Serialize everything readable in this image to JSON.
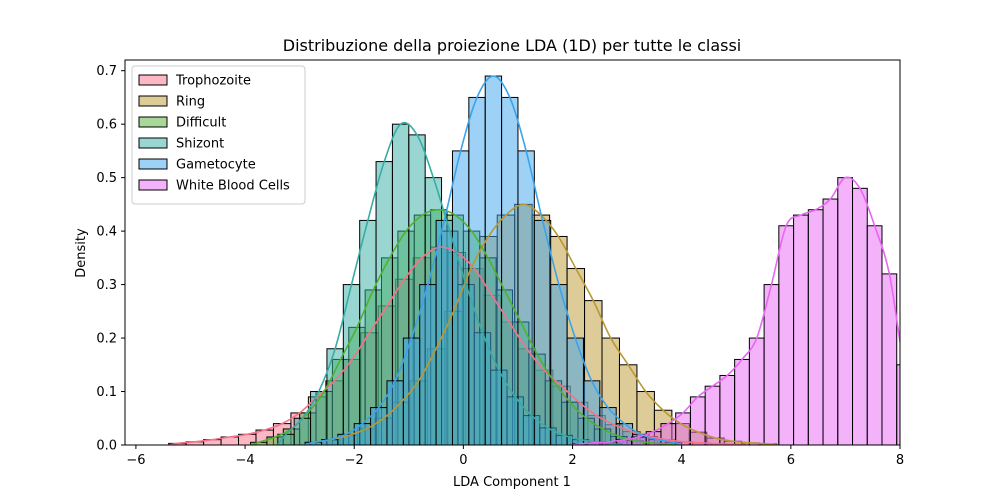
{
  "chart_data": {
    "type": "histogram",
    "title": "Distribuzione della proiezione LDA (1D) per tutte le classi",
    "xlabel": "LDA Component 1",
    "ylabel": "Density",
    "xlim": [
      -6.2,
      8.0
    ],
    "ylim": [
      0,
      0.72
    ],
    "xticks": [
      -6,
      -4,
      -2,
      0,
      2,
      4,
      6,
      8
    ],
    "yticks": [
      0.0,
      0.1,
      0.2,
      0.3,
      0.4,
      0.5,
      0.6,
      0.7
    ],
    "grid": false,
    "legend_position": "upper-left",
    "series": [
      {
        "name": "Trophozoite",
        "color": "#f77189",
        "bin_start": -5.4,
        "bin_width": 0.32,
        "densities": [
          0.003,
          0.006,
          0.01,
          0.015,
          0.02,
          0.028,
          0.04,
          0.06,
          0.09,
          0.12,
          0.16,
          0.21,
          0.26,
          0.31,
          0.35,
          0.37,
          0.36,
          0.33,
          0.28,
          0.23,
          0.18,
          0.14,
          0.11,
          0.08,
          0.055,
          0.038,
          0.025,
          0.016,
          0.01,
          0.006,
          0.004,
          0.002,
          0.001
        ]
      },
      {
        "name": "Ring",
        "color": "#bb9832",
        "bin_start": -2.9,
        "bin_width": 0.32,
        "densities": [
          0.005,
          0.01,
          0.018,
          0.03,
          0.05,
          0.08,
          0.12,
          0.18,
          0.25,
          0.33,
          0.39,
          0.43,
          0.45,
          0.43,
          0.39,
          0.33,
          0.27,
          0.2,
          0.15,
          0.1,
          0.065,
          0.04,
          0.024,
          0.013,
          0.007,
          0.004,
          0.002
        ]
      },
      {
        "name": "Difficult",
        "color": "#50b131",
        "bin_start": -3.9,
        "bin_width": 0.3,
        "densities": [
          0.005,
          0.015,
          0.03,
          0.06,
          0.1,
          0.16,
          0.22,
          0.29,
          0.35,
          0.4,
          0.43,
          0.44,
          0.43,
          0.4,
          0.35,
          0.29,
          0.23,
          0.17,
          0.12,
          0.08,
          0.05,
          0.03,
          0.016,
          0.008,
          0.004,
          0.002
        ]
      },
      {
        "name": "Shizont",
        "color": "#36ada4",
        "bin_start": -3.4,
        "bin_width": 0.3,
        "densities": [
          0.02,
          0.05,
          0.1,
          0.18,
          0.3,
          0.42,
          0.53,
          0.6,
          0.58,
          0.5,
          0.4,
          0.3,
          0.21,
          0.14,
          0.09,
          0.055,
          0.032,
          0.018,
          0.01,
          0.005,
          0.002
        ]
      },
      {
        "name": "Gametocyte",
        "color": "#3ba3ec",
        "bin_start": -2.9,
        "bin_width": 0.3,
        "densities": [
          0.005,
          0.01,
          0.02,
          0.04,
          0.07,
          0.12,
          0.2,
          0.3,
          0.42,
          0.55,
          0.65,
          0.69,
          0.65,
          0.55,
          0.42,
          0.3,
          0.2,
          0.12,
          0.07,
          0.04,
          0.02,
          0.01,
          0.005
        ]
      },
      {
        "name": "White Blood Cells",
        "color": "#e866f4",
        "bin_start": 2.0,
        "bin_width": 0.27,
        "densities": [
          0.002,
          0.004,
          0.006,
          0.01,
          0.015,
          0.025,
          0.04,
          0.06,
          0.09,
          0.11,
          0.13,
          0.16,
          0.2,
          0.3,
          0.41,
          0.43,
          0.44,
          0.46,
          0.5,
          0.48,
          0.41,
          0.32,
          0.15,
          0.06,
          0.025,
          0.01,
          0.004,
          0.002
        ]
      }
    ]
  }
}
